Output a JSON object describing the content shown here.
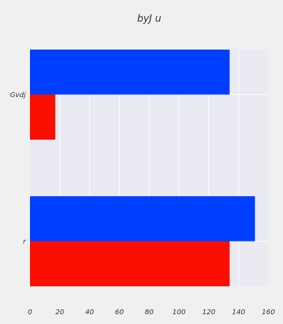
{
  "chart_data": {
    "type": "bar",
    "orientation": "horizontal",
    "title": "byJ u",
    "xlabel": "",
    "ylabel": "",
    "categories": [
      "r",
      "Gvdj"
    ],
    "series": [
      {
        "values": [
          134,
          17
        ],
        "color": "#f90e00"
      },
      {
        "values": [
          151,
          134
        ],
        "color": "#003fff"
      }
    ],
    "xlim": [
      0,
      160
    ],
    "x_ticks": [
      0,
      20,
      40,
      60,
      80,
      100,
      120,
      140,
      160
    ],
    "grid": true,
    "legend": "none"
  },
  "colors": {
    "page_background": "#f0f0f0",
    "plot_background": "#eaeaf2",
    "grid": "#ffffff",
    "text": "#333333"
  }
}
